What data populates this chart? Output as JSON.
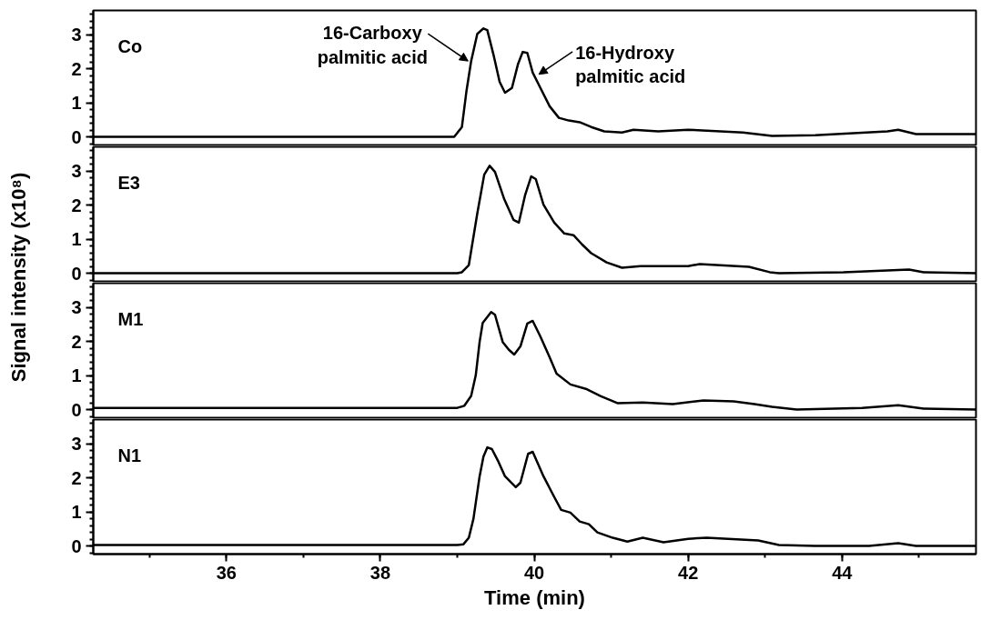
{
  "chart_data": [
    {
      "type": "line",
      "ylabel": "Signal intensity (x10⁸)",
      "xlim": [
        34.27,
        45.74
      ],
      "ylim": [
        -0.24,
        3.72
      ],
      "yticks": [
        0,
        1,
        2,
        3
      ],
      "tick_labels": "y",
      "series": [
        {
          "name": "Co",
          "color": "#000000",
          "x": [
            34.27,
            36,
            38,
            38.9,
            38.96,
            39.06,
            39.12,
            39.18,
            39.26,
            39.34,
            39.39,
            39.47,
            39.55,
            39.62,
            39.71,
            39.79,
            39.85,
            39.91,
            39.98,
            40.08,
            40.2,
            40.32,
            40.45,
            40.59,
            40.74,
            40.91,
            41.14,
            41.29,
            41.61,
            42.0,
            42.71,
            43.09,
            43.65,
            44.59,
            44.73,
            44.96,
            45.74
          ],
          "values": [
            0,
            0,
            0,
            0,
            0,
            0.29,
            1.36,
            2.23,
            3.03,
            3.19,
            3.14,
            2.42,
            1.62,
            1.3,
            1.44,
            2.15,
            2.5,
            2.47,
            1.89,
            1.44,
            0.9,
            0.56,
            0.48,
            0.43,
            0.29,
            0.16,
            0.13,
            0.21,
            0.16,
            0.21,
            0.13,
            0.03,
            0.05,
            0.16,
            0.21,
            0.08,
            0.08
          ]
        }
      ],
      "annotations": [
        {
          "text": "16-Carboxy\npalmitic acid",
          "x": 39.14,
          "y": 2.23
        },
        {
          "text": "16-Hydroxy\npalmitic acid",
          "x": 40.06,
          "y": 1.84
        }
      ]
    },
    {
      "type": "line",
      "xlim": [
        34.27,
        45.74
      ],
      "ylim": [
        -0.24,
        3.72
      ],
      "yticks": [
        0,
        1,
        2,
        3
      ],
      "tick_labels": "y",
      "series": [
        {
          "name": "E3",
          "color": "#000000",
          "x": [
            34.27,
            36,
            38,
            39.0,
            39.06,
            39.15,
            39.26,
            39.35,
            39.42,
            39.49,
            39.61,
            39.73,
            39.8,
            39.88,
            39.96,
            40.02,
            40.12,
            40.26,
            40.39,
            40.51,
            40.62,
            40.74,
            40.94,
            41.14,
            41.38,
            42.0,
            42.15,
            42.79,
            43.06,
            43.18,
            44.02,
            44.59,
            44.87,
            45.06,
            45.74
          ],
          "values": [
            0,
            0,
            0,
            0,
            0.03,
            0.24,
            1.76,
            2.9,
            3.16,
            2.98,
            2.18,
            1.57,
            1.49,
            2.29,
            2.85,
            2.77,
            2.02,
            1.49,
            1.17,
            1.12,
            0.85,
            0.59,
            0.32,
            0.16,
            0.21,
            0.21,
            0.27,
            0.19,
            0.03,
            0,
            0.03,
            0.08,
            0.11,
            0.03,
            0
          ]
        }
      ]
    },
    {
      "type": "line",
      "xlim": [
        34.27,
        45.74
      ],
      "ylim": [
        -0.24,
        3.72
      ],
      "yticks": [
        0,
        1,
        2,
        3
      ],
      "tick_labels": "y",
      "series": [
        {
          "name": "M1",
          "color": "#000000",
          "x": [
            34.27,
            36,
            38,
            39.0,
            39.09,
            39.18,
            39.24,
            39.29,
            39.33,
            39.44,
            39.49,
            39.59,
            39.67,
            39.74,
            39.82,
            39.91,
            39.98,
            40.08,
            40.2,
            40.29,
            40.47,
            40.67,
            40.86,
            41.08,
            41.41,
            41.8,
            42.2,
            42.59,
            42.86,
            43.09,
            43.41,
            44.26,
            44.73,
            45.06,
            45.74
          ],
          "values": [
            0.05,
            0.05,
            0.05,
            0.05,
            0.11,
            0.4,
            1.01,
            1.99,
            2.55,
            2.87,
            2.79,
            1.99,
            1.76,
            1.62,
            1.86,
            2.53,
            2.61,
            2.15,
            1.54,
            1.06,
            0.74,
            0.61,
            0.4,
            0.19,
            0.21,
            0.16,
            0.27,
            0.24,
            0.16,
            0.08,
            0,
            0.05,
            0.13,
            0.03,
            0
          ]
        }
      ]
    },
    {
      "type": "line",
      "xlabel": "Time (min)",
      "xlim": [
        34.27,
        45.74
      ],
      "ylim": [
        -0.24,
        3.72
      ],
      "yticks": [
        0,
        1,
        2,
        3
      ],
      "xticks": [
        36,
        38,
        40,
        42,
        44
      ],
      "series": [
        {
          "name": "N1",
          "color": "#000000",
          "x": [
            34.27,
            36,
            38,
            39.0,
            39.08,
            39.15,
            39.21,
            39.29,
            39.34,
            39.39,
            39.45,
            39.53,
            39.62,
            39.76,
            39.82,
            39.92,
            39.98,
            40.12,
            40.26,
            40.35,
            40.47,
            40.59,
            40.71,
            40.82,
            41.02,
            41.21,
            41.41,
            41.68,
            42.0,
            42.24,
            42.91,
            43.18,
            43.65,
            44.35,
            44.73,
            44.96,
            45.74
          ],
          "values": [
            0.03,
            0.03,
            0.03,
            0.03,
            0.05,
            0.24,
            0.8,
            2.05,
            2.63,
            2.9,
            2.85,
            2.5,
            2.05,
            1.73,
            1.86,
            2.71,
            2.77,
            2.05,
            1.44,
            1.06,
            0.98,
            0.72,
            0.64,
            0.4,
            0.24,
            0.13,
            0.24,
            0.11,
            0.21,
            0.24,
            0.16,
            0.03,
            0,
            0,
            0.08,
            0,
            0
          ]
        }
      ]
    }
  ]
}
